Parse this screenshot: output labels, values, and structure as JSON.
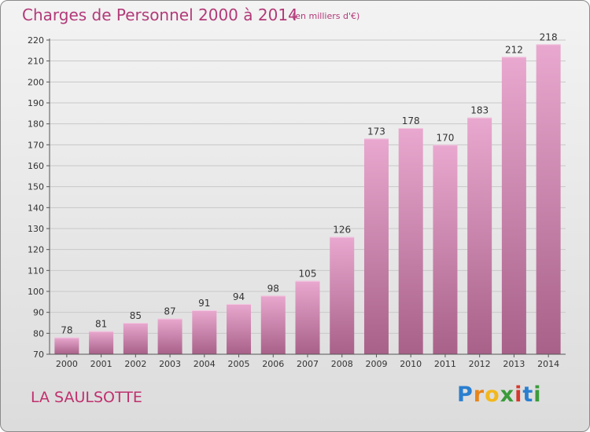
{
  "title": "Charges de Personnel 2000 à 2014",
  "unit_note": "(en milliers d'€)",
  "location": "LA SAULSOTTE",
  "brand": {
    "letters": [
      "P",
      "r",
      "o",
      "x",
      "i",
      "t",
      "i"
    ],
    "colors": [
      "#2a7fd0",
      "#e8851a",
      "#f2b81c",
      "#3a9b3a",
      "#d53a2e",
      "#2a7fd0",
      "#3a9b3a"
    ]
  },
  "colors": {
    "title": "#b23a78",
    "bar_top": "#e9a8cf",
    "bar_bottom": "#a86189",
    "grid": "#c8c8c8",
    "axis": "#555555"
  },
  "chart_data": {
    "type": "bar",
    "categories": [
      "2000",
      "2001",
      "2002",
      "2003",
      "2004",
      "2005",
      "2006",
      "2007",
      "2008",
      "2009",
      "2010",
      "2011",
      "2012",
      "2013",
      "2014"
    ],
    "values": [
      78,
      81,
      85,
      87,
      91,
      94,
      98,
      105,
      126,
      173,
      178,
      170,
      183,
      212,
      218
    ],
    "ylim": [
      70,
      220
    ],
    "yticks": [
      70,
      80,
      90,
      100,
      110,
      120,
      130,
      140,
      150,
      160,
      170,
      180,
      190,
      200,
      210,
      220
    ],
    "grid": true,
    "xlabel": "",
    "ylabel": ""
  }
}
